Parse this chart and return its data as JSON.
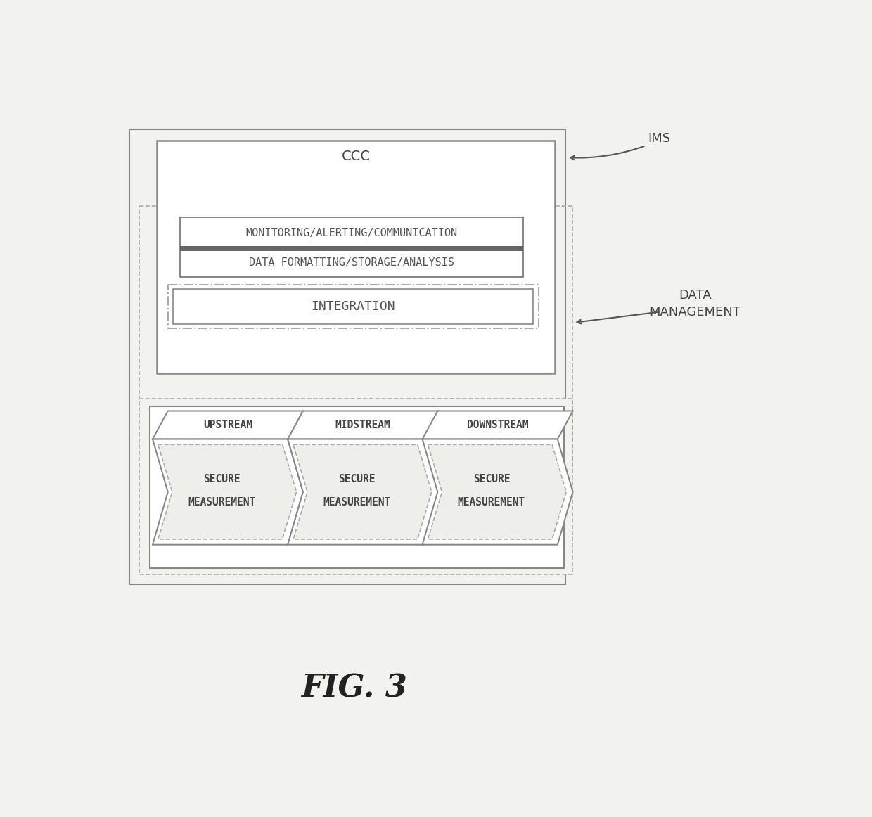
{
  "bg_color": "#f2f2ee",
  "fig_title": "FIG. 3",
  "label_IMS": "IMS",
  "label_DATA_MANAGEMENT": "DATA\nMANAGEMENT",
  "label_CCC": "CCC",
  "label_monitoring": "MONITORING/ALERTING/COMMUNICATION",
  "label_data_formatting": "DATA FORMATTING/STORAGE/ANALYSIS",
  "label_integration": "INTEGRATION",
  "label_upstream": "UPSTREAM",
  "label_midstream": "MIDSTREAM",
  "label_downstream": "DOWNSTREAM",
  "label_secure": "SECURE\nMEASUREMENT",
  "edge_solid": "#888888",
  "edge_dashed": "#aaaaaa",
  "dark_bar": "#666666",
  "text_dark": "#444444",
  "text_mid": "#555555"
}
